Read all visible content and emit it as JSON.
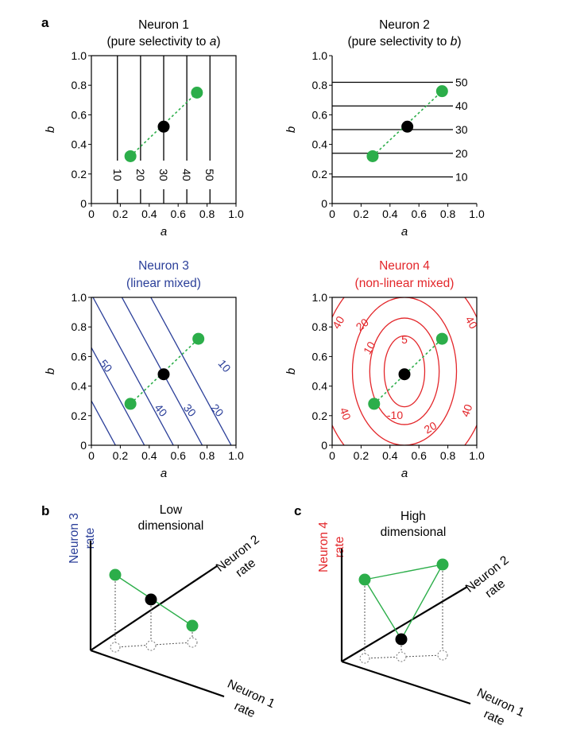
{
  "colors": {
    "neuron3": "#2b3f99",
    "neuron4": "#e3262a",
    "points": "#2cae4a",
    "center": "#000000"
  },
  "panels": {
    "a": "a",
    "b": "b",
    "c": "c"
  },
  "axes": {
    "xlabel": "a",
    "ylabel": "b",
    "x_ticks": [
      "0",
      "0.2",
      "0.4",
      "0.6",
      "0.8",
      "1.0"
    ],
    "y_ticks": [
      "0",
      "0.2",
      "0.4",
      "0.6",
      "0.8",
      "1.0"
    ]
  },
  "chart_data": [
    {
      "type": "contour",
      "id": "neuron1",
      "title": "Neuron 1",
      "subtitle_prefix": "(pure selectivity to ",
      "subtitle_var": "a",
      "subtitle_suffix": ")",
      "xlim": [
        0,
        1
      ],
      "ylim": [
        0,
        1
      ],
      "contours": [
        {
          "level": "10",
          "a": 0.18
        },
        {
          "level": "20",
          "a": 0.34
        },
        {
          "level": "30",
          "a": 0.5
        },
        {
          "level": "40",
          "a": 0.66
        },
        {
          "level": "50",
          "a": 0.82
        }
      ],
      "points": [
        {
          "a": 0.27,
          "b": 0.32,
          "c": "green"
        },
        {
          "a": 0.5,
          "b": 0.52,
          "c": "black"
        },
        {
          "a": 0.73,
          "b": 0.75,
          "c": "green"
        }
      ]
    },
    {
      "type": "contour",
      "id": "neuron2",
      "title": "Neuron 2",
      "subtitle_prefix": "(pure selectivity to ",
      "subtitle_var": "b",
      "subtitle_suffix": ")",
      "xlim": [
        0,
        1
      ],
      "ylim": [
        0,
        1
      ],
      "contours": [
        {
          "level": "10",
          "b": 0.18
        },
        {
          "level": "20",
          "b": 0.34
        },
        {
          "level": "30",
          "b": 0.5
        },
        {
          "level": "40",
          "b": 0.66
        },
        {
          "level": "50",
          "b": 0.82
        }
      ],
      "points": [
        {
          "a": 0.28,
          "b": 0.32,
          "c": "green"
        },
        {
          "a": 0.52,
          "b": 0.52,
          "c": "black"
        },
        {
          "a": 0.76,
          "b": 0.76,
          "c": "green"
        }
      ]
    },
    {
      "type": "contour",
      "id": "neuron3",
      "title": "Neuron 3",
      "subtitle": "(linear mixed)",
      "xlim": [
        0,
        1
      ],
      "ylim": [
        0,
        1
      ],
      "contours": [
        {
          "level": "50",
          "c": 0.42
        },
        {
          "level": "40",
          "c": 0.78
        },
        {
          "level": "30",
          "c": 1.14
        },
        {
          "level": "20",
          "c": 1.5
        },
        {
          "level": "10",
          "c": 1.86
        }
      ],
      "points": [
        {
          "a": 0.27,
          "b": 0.28,
          "c": "green"
        },
        {
          "a": 0.5,
          "b": 0.48,
          "c": "black"
        },
        {
          "a": 0.74,
          "b": 0.72,
          "c": "green"
        }
      ]
    },
    {
      "type": "contour",
      "id": "neuron4",
      "title": "Neuron 4",
      "subtitle": "(non-linear mixed)",
      "xlim": [
        0,
        1
      ],
      "ylim": [
        0,
        1
      ],
      "contours": [
        {
          "level": "5",
          "rx": 0.14,
          "ry": 0.24
        },
        {
          "level": "10",
          "rx": 0.24,
          "ry": 0.36
        },
        {
          "level": "20",
          "rx": 0.36,
          "ry": 0.5
        },
        {
          "level": "40",
          "rx": 0.58,
          "ry": 0.72
        }
      ],
      "points": [
        {
          "a": 0.29,
          "b": 0.28,
          "c": "green"
        },
        {
          "a": 0.5,
          "b": 0.48,
          "c": "black"
        },
        {
          "a": 0.76,
          "b": 0.72,
          "c": "green"
        }
      ]
    }
  ],
  "neuron4_labels": [
    "5",
    "10",
    "-10",
    "20",
    "20",
    "40",
    "40",
    "40",
    "40"
  ],
  "panel_b": {
    "title_line1": "Low",
    "title_line2": "dimensional",
    "yaxis_line1": "Neuron 3",
    "yaxis_line2": "rate",
    "diag_line1": "Neuron 2",
    "diag_line2": "rate",
    "xaxis_line1": "Neuron 1",
    "xaxis_line2": "rate"
  },
  "panel_c": {
    "title_line1": "High",
    "title_line2": "dimensional",
    "yaxis_line1": "Neuron 4",
    "yaxis_line2": "rate",
    "diag_line1": "Neuron 2",
    "diag_line2": "rate",
    "xaxis_line1": "Neuron 1",
    "xaxis_line2": "rate"
  }
}
